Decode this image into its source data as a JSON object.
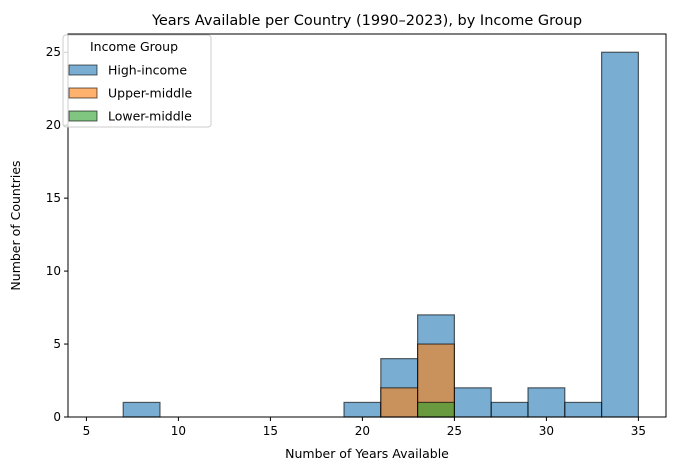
{
  "chart_data": {
    "type": "bar",
    "title": "Years Available per Country (1990–2023), by Income Group",
    "xlabel": "Number of Years Available",
    "ylabel": "Number of Countries",
    "xlim": [
      4,
      36.5
    ],
    "ylim": [
      0,
      26.25
    ],
    "xticks": [
      "5",
      "10",
      "15",
      "20",
      "25",
      "30",
      "35"
    ],
    "yticks": [
      "0",
      "5",
      "10",
      "15",
      "20",
      "25"
    ],
    "grid": false,
    "legend": {
      "title": "Income Group",
      "placement": "top-left"
    },
    "bins": [
      [
        7,
        9
      ],
      [
        19,
        21
      ],
      [
        21,
        23
      ],
      [
        23,
        25
      ],
      [
        25,
        27
      ],
      [
        27,
        29
      ],
      [
        29,
        31
      ],
      [
        31,
        33
      ],
      [
        33,
        35
      ]
    ],
    "series": [
      {
        "name": "High-income",
        "color": "#1f77b4",
        "values": [
          1,
          1,
          4,
          7,
          2,
          1,
          2,
          1,
          25
        ]
      },
      {
        "name": "Upper-middle",
        "color": "#ff7f0e",
        "values": [
          0,
          0,
          2,
          5,
          0,
          0,
          0,
          0,
          0
        ]
      },
      {
        "name": "Lower-middle",
        "color": "#2ca02c",
        "values": [
          0,
          0,
          0,
          1,
          0,
          0,
          0,
          0,
          0
        ]
      }
    ]
  }
}
